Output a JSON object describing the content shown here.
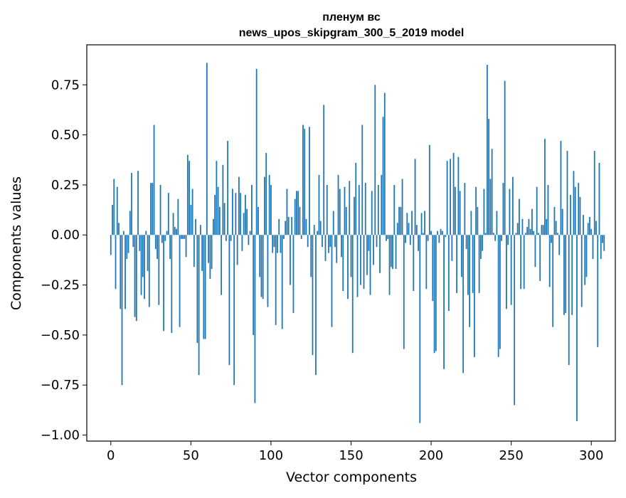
{
  "chart_data": {
    "type": "bar",
    "title_line1": "пленум вс",
    "title_line2": "news_upos_skipgram_300_5_2019 model",
    "xlabel": "Vector components",
    "ylabel": "Components values",
    "xlim": [
      -15,
      315
    ],
    "ylim": [
      -1.03,
      0.95
    ],
    "xticks": [
      0,
      50,
      100,
      150,
      200,
      250,
      300
    ],
    "yticks": [
      -1.0,
      -0.75,
      -0.5,
      -0.25,
      0.0,
      0.25,
      0.5,
      0.75
    ],
    "ytick_labels": [
      "−1.00",
      "−0.75",
      "−0.50",
      "−0.25",
      "0.00",
      "0.25",
      "0.50",
      "0.75"
    ],
    "bar_color": "#1f77b4",
    "grid": false,
    "legend": "none",
    "values": [
      -0.1,
      0.15,
      0.28,
      -0.27,
      0.24,
      0.06,
      -0.37,
      -0.75,
      0.02,
      -0.37,
      -0.12,
      -0.09,
      0.12,
      0.31,
      -0.06,
      -0.41,
      -0.43,
      0.32,
      -0.08,
      -0.3,
      -0.21,
      -0.32,
      0.02,
      -0.18,
      -0.36,
      0.26,
      0.26,
      0.55,
      -0.07,
      -0.12,
      -0.35,
      0.25,
      -0.04,
      -0.48,
      -0.03,
      0.02,
      0.21,
      -0.12,
      -0.49,
      0.11,
      0.04,
      0.03,
      0.18,
      -0.46,
      -0.02,
      -0.02,
      -0.02,
      -0.11,
      0.4,
      0.37,
      0.15,
      0.23,
      -0.16,
      0.08,
      -0.54,
      -0.7,
      0.05,
      -0.18,
      -0.52,
      -0.52,
      0.86,
      -0.14,
      -0.22,
      -0.17,
      0.08,
      0.2,
      0.37,
      0.24,
      0.14,
      -0.3,
      0.35,
      0.16,
      -0.03,
      0.47,
      -0.65,
      -0.03,
      0.23,
      -0.75,
      0.21,
      -0.15,
      0.29,
      0.21,
      -0.08,
      0.11,
      0.2,
      0.13,
      -0.05,
      0.02,
      0.25,
      -0.5,
      -0.84,
      0.83,
      0.14,
      -0.21,
      -0.31,
      -0.32,
      0.29,
      0.41,
      -0.36,
      0.3,
      0.25,
      -0.09,
      -0.06,
      -0.45,
      -0.09,
      0.08,
      -0.09,
      -0.47,
      -0.02,
      0.07,
      0.23,
      0.09,
      -0.25,
      0.09,
      -0.39,
      0.18,
      0.22,
      0.22,
      0.14,
      -0.02,
      0.55,
      0.53,
      0.08,
      -0.06,
      0.54,
      -0.21,
      -0.6,
      0.05,
      -0.7,
      0.02,
      0.3,
      0.07,
      -0.06,
      0.65,
      -0.13,
      0.25,
      -0.09,
      -0.06,
      -0.46,
      0.12,
      -0.06,
      -0.14,
      0.3,
      0.23,
      -0.11,
      -0.28,
      0.24,
      0.14,
      -0.32,
      0.27,
      -0.21,
      -0.59,
      0.19,
      0.36,
      -0.31,
      0.25,
      -0.25,
      0.55,
      -0.27,
      0.26,
      -0.2,
      -0.08,
      -0.3,
      0.22,
      -0.15,
      0.75,
      -0.06,
      0.25,
      -0.19,
      0.3,
      0.59,
      0.71,
      -0.03,
      -0.02,
      -0.3,
      -0.16,
      -0.17,
      0.25,
      -0.17,
      0.06,
      0.14,
      0.14,
      0.28,
      -0.57,
      -0.04,
      0.11,
      0.06,
      -0.05,
      0.12,
      -0.28,
      0.38,
      0.05,
      -0.08,
      -0.94,
      0.11,
      0.01,
      0.12,
      -0.27,
      -0.03,
      0.45,
      0.02,
      -0.33,
      -0.59,
      -0.58,
      0.02,
      -0.04,
      0.03,
      0.02,
      -0.67,
      -0.01,
      0.37,
      -0.38,
      0.38,
      -0.13,
      0.41,
      0.24,
      -0.29,
      0.39,
      0.22,
      -0.21,
      -0.69,
      0.26,
      -0.07,
      -0.3,
      -0.46,
      0.12,
      -0.29,
      -0.61,
      0.24,
      0.14,
      -0.29,
      -0.12,
      -0.08,
      0.23,
      0.01,
      0.85,
      0.58,
      0.28,
      0.43,
      0.01,
      -0.03,
      0.12,
      -0.61,
      -0.57,
      -0.03,
      0.26,
      0.77,
      -0.37,
      -0.05,
      0.23,
      -0.35,
      0.29,
      -0.85,
      0.01,
      0.06,
      0.18,
      -0.27,
      0.08,
      -0.27,
      0.01,
      0.04,
      0.08,
      0.03,
      0.13,
      0.02,
      -0.16,
      0.24,
      0.01,
      -0.23,
      0.05,
      0.05,
      0.48,
      0.08,
      0.25,
      -0.26,
      -0.04,
      -0.46,
      0.14,
      0.07,
      0.01,
      -0.1,
      0.47,
      0.13,
      -0.4,
      -0.39,
      0.42,
      -0.65,
      0.2,
      -0.4,
      0.32,
      0.24,
      -0.93,
      0.26,
      0.19,
      -0.36,
      0.1,
      -0.25,
      -0.21,
      0.06,
      0.09,
      0.03,
      -0.12,
      0.42,
      0.07,
      -0.56,
      0.36,
      -0.12,
      -0.04,
      -0.08
    ]
  }
}
